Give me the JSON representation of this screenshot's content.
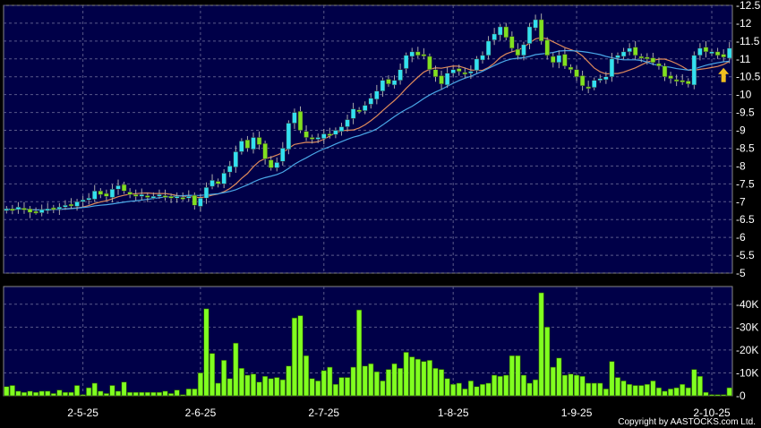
{
  "chart_data": [
    {
      "type": "candlestick",
      "panel": "price",
      "y_ticks": [
        "12.5",
        "12",
        "11.5",
        "11",
        "10.5",
        "10",
        "9.5",
        "9",
        "8.5",
        "8",
        "7.5",
        "7",
        "6.5",
        "6",
        "5.5",
        "5"
      ],
      "ylim": [
        5,
        12.5
      ],
      "close": [
        6.8,
        6.75,
        6.85,
        6.8,
        6.7,
        6.72,
        6.78,
        6.8,
        6.82,
        6.85,
        6.9,
        6.9,
        7.0,
        7.05,
        7.1,
        7.3,
        7.2,
        7.15,
        7.35,
        7.45,
        7.3,
        7.2,
        7.15,
        7.2,
        7.15,
        7.15,
        7.2,
        7.15,
        7.1,
        7.15,
        7.1,
        7.15,
        6.9,
        7.1,
        7.4,
        7.6,
        7.5,
        7.8,
        8.0,
        8.4,
        8.7,
        8.5,
        8.8,
        8.6,
        8.2,
        7.95,
        8.1,
        8.5,
        9.2,
        9.5,
        9.0,
        8.8,
        8.75,
        8.8,
        8.9,
        8.85,
        9.0,
        9.1,
        9.3,
        9.6,
        9.55,
        9.7,
        9.9,
        10.1,
        10.4,
        10.3,
        10.4,
        10.7,
        11.1,
        11.2,
        11.1,
        11.1,
        10.7,
        10.5,
        10.3,
        10.6,
        10.7,
        10.65,
        10.6,
        10.65,
        11.0,
        11.1,
        11.5,
        11.7,
        11.9,
        11.6,
        11.3,
        11.1,
        11.4,
        11.9,
        12.1,
        11.5,
        11.1,
        10.9,
        11.1,
        10.8,
        10.7,
        10.5,
        10.25,
        10.2,
        10.4,
        10.45,
        10.5,
        11.0,
        11.1,
        11.2,
        11.3,
        11.1,
        11.05,
        11.0,
        10.9,
        10.8,
        10.5,
        10.45,
        10.4,
        10.35,
        10.3,
        11.1,
        11.3,
        11.2,
        11.2,
        11.1,
        11.05,
        11.3
      ],
      "ma_lines": [
        {
          "color": "#e08a5a",
          "period": 10
        },
        {
          "color": "#4aa8e8",
          "period": 20
        }
      ],
      "up_color": "#33e0f0",
      "down_color": "#80e020",
      "marker": "up-arrow-icon",
      "marker_color": "#f0c020"
    },
    {
      "type": "bar",
      "panel": "volume",
      "y_ticks": [
        "40K",
        "30K",
        "20K",
        "10K",
        "0"
      ],
      "ylim": [
        0,
        45
      ],
      "unit": "K",
      "values": [
        4,
        4.5,
        2,
        1.5,
        2,
        1.5,
        2,
        2,
        1,
        2.5,
        1.5,
        1.5,
        4.5,
        0.5,
        3.5,
        5.5,
        2,
        1,
        4.5,
        2,
        6,
        1.5,
        1.5,
        1.5,
        1.5,
        1.5,
        1.5,
        2,
        1,
        2.5,
        0.5,
        3,
        3,
        10,
        38,
        18.5,
        5.5,
        15.5,
        7.5,
        23,
        12,
        9,
        9.5,
        6,
        8.5,
        7.5,
        8,
        7,
        13,
        34,
        35,
        17.5,
        7.5,
        6.5,
        11,
        12.5,
        5,
        8,
        8,
        12.5,
        37.5,
        13,
        14,
        10.5,
        6.5,
        11.5,
        14,
        12,
        19,
        17,
        16,
        15,
        15.5,
        12,
        11.5,
        7.5,
        5,
        5.5,
        3,
        6.5,
        4,
        5,
        5.5,
        9,
        8.5,
        9,
        17.5,
        17.5,
        9,
        5.5,
        7,
        45,
        30,
        12.5,
        16.5,
        9,
        9.5,
        9,
        8.5,
        5.5,
        5.5,
        5.5,
        3,
        15,
        8,
        6.5,
        5,
        4.5,
        4.5,
        5,
        6.5,
        3.5,
        2,
        3,
        3.5,
        5,
        3.5,
        11.5,
        8.5,
        1.5,
        0.5,
        0.5,
        0.5,
        3.5
      ],
      "color": "#80ff20"
    }
  ],
  "x_labels": [
    {
      "label": "2-5-25",
      "index": 13
    },
    {
      "label": "2-6-25",
      "index": 33
    },
    {
      "label": "2-7-25",
      "index": 54
    },
    {
      "label": "1-8-25",
      "index": 76
    },
    {
      "label": "1-9-25",
      "index": 97
    },
    {
      "label": "2-10-25",
      "index": 120
    }
  ],
  "colors": {
    "panel_bg": "#000048",
    "grid": "#5a5a8a",
    "background": "#000000"
  },
  "copyright": "Copyright by AASTOCKS.com Ltd."
}
